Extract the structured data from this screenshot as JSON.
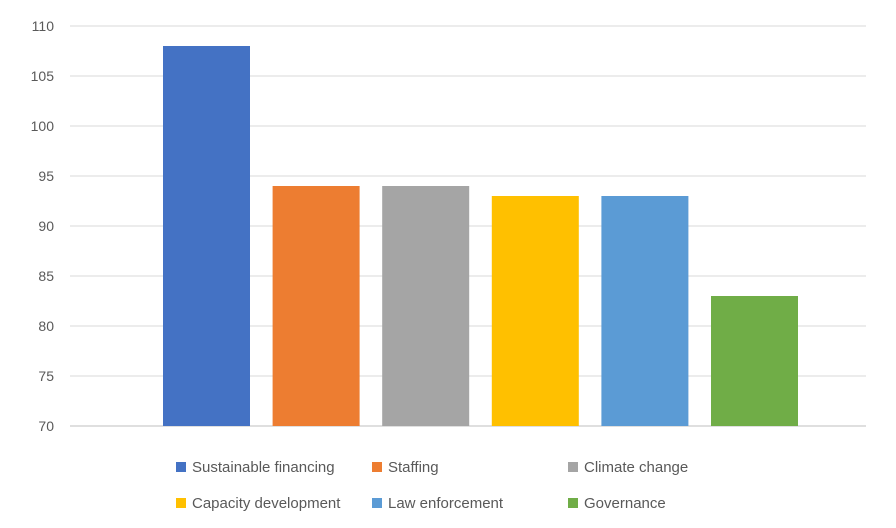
{
  "chart_data": {
    "type": "bar",
    "categories": [
      "Sustainable financing",
      "Staffing",
      "Climate change",
      "Capacity development",
      "Law enforcement",
      "Governance"
    ],
    "values": [
      108,
      94,
      94,
      93,
      93,
      83
    ],
    "colors": [
      "#4472C4",
      "#ED7D31",
      "#A5A5A5",
      "#FFC000",
      "#5B9BD5",
      "#70AD47"
    ],
    "ylim": [
      70,
      110
    ],
    "yticks": [
      "70",
      "75",
      "80",
      "85",
      "90",
      "95",
      "100",
      "105",
      "110"
    ],
    "grid": true,
    "legend_position": "bottom",
    "title": "",
    "xlabel": "",
    "ylabel": ""
  },
  "legend": {
    "items": [
      {
        "label": "Sustainable financing",
        "color": "#4472C4"
      },
      {
        "label": "Staffing",
        "color": "#ED7D31"
      },
      {
        "label": "Climate change",
        "color": "#A5A5A5"
      },
      {
        "label": "Capacity development",
        "color": "#FFC000"
      },
      {
        "label": "Law enforcement",
        "color": "#5B9BD5"
      },
      {
        "label": "Governance",
        "color": "#70AD47"
      }
    ]
  }
}
